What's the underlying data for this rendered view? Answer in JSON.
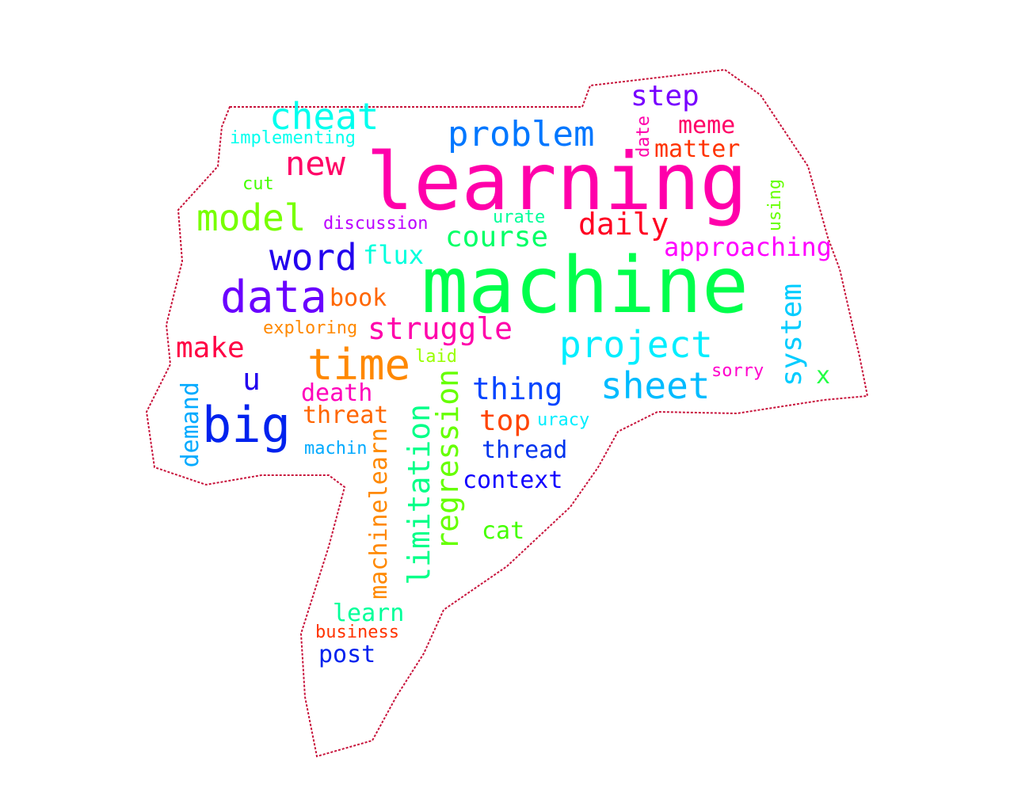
{
  "header_text": "",
  "outline_color": "#c8143c",
  "words": [
    {
      "text": "learning",
      "color": "#ff00aa"
    },
    {
      "text": "machine",
      "color": "#00ff4c"
    },
    {
      "text": "data",
      "color": "#6a00ff"
    },
    {
      "text": "big",
      "color": "#0022ee"
    },
    {
      "text": "time",
      "color": "#ff8800"
    },
    {
      "text": "problem",
      "color": "#0077ff"
    },
    {
      "text": "cheat",
      "color": "#00ffee"
    },
    {
      "text": "model",
      "color": "#77ff00"
    },
    {
      "text": "word",
      "color": "#2200ee"
    },
    {
      "text": "new",
      "color": "#ff0066"
    },
    {
      "text": "project",
      "color": "#00eeff"
    },
    {
      "text": "sheet",
      "color": "#00bbff"
    },
    {
      "text": "step",
      "color": "#7700ff"
    },
    {
      "text": "course",
      "color": "#00ff66"
    },
    {
      "text": "daily",
      "color": "#ff0022"
    },
    {
      "text": "struggle",
      "color": "#ff00aa"
    },
    {
      "text": "approaching",
      "color": "#ff00ff"
    },
    {
      "text": "system",
      "color": "#00ccff"
    },
    {
      "text": "regression",
      "color": "#66ff00"
    },
    {
      "text": "limitation",
      "color": "#00ff88"
    },
    {
      "text": "thing",
      "color": "#0044ff"
    },
    {
      "text": "make",
      "color": "#ff0044"
    },
    {
      "text": "top",
      "color": "#ff4400"
    },
    {
      "text": "meme",
      "color": "#ff0066"
    },
    {
      "text": "matter",
      "color": "#ff3300"
    },
    {
      "text": "book",
      "color": "#ff6600"
    },
    {
      "text": "flux",
      "color": "#00ffdd"
    },
    {
      "text": "u",
      "color": "#2200ee"
    },
    {
      "text": "death",
      "color": "#ff00bb"
    },
    {
      "text": "threat",
      "color": "#ff6600"
    },
    {
      "text": "machinelearn",
      "color": "#ff8800"
    },
    {
      "text": "demand",
      "color": "#00aaff"
    },
    {
      "text": "thread",
      "color": "#0033ee"
    },
    {
      "text": "context",
      "color": "#1100ff"
    },
    {
      "text": "cat",
      "color": "#44ff00"
    },
    {
      "text": "learn",
      "color": "#00ff99"
    },
    {
      "text": "post",
      "color": "#0022ee"
    },
    {
      "text": "business",
      "color": "#ff3300"
    },
    {
      "text": "implementing",
      "color": "#00ffee"
    },
    {
      "text": "discussion",
      "color": "#bb00ff"
    },
    {
      "text": "cut",
      "color": "#44ff00"
    },
    {
      "text": "urate",
      "color": "#00ff99"
    },
    {
      "text": "exploring",
      "color": "#ff8800"
    },
    {
      "text": "laid",
      "color": "#99ff00"
    },
    {
      "text": "machin",
      "color": "#00aaff"
    },
    {
      "text": "uracy",
      "color": "#00eeff"
    },
    {
      "text": "sorry",
      "color": "#ff00cc"
    },
    {
      "text": "x",
      "color": "#22ff44"
    },
    {
      "text": "date",
      "color": "#ff00aa"
    },
    {
      "text": "using",
      "color": "#66ff00"
    }
  ]
}
